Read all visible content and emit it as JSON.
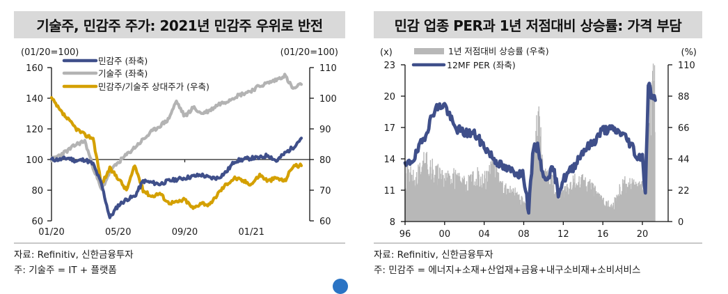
{
  "colors": {
    "navy": "#3f4f8a",
    "gray": "#b3b3b3",
    "gold": "#d4a000",
    "title_bg": "#d9d9d9",
    "bar_gray": "#b8b8b8"
  },
  "left_panel": {
    "title": "기술주, 민감주 주가: 2021년 민감주 우위로 반전",
    "left_unit": "(01/20=100)",
    "right_unit": "(01/20=100)",
    "source": "자료: Refinitiv, 신한금융투자",
    "note": "주: 기술주 = IT + 플랫폼"
  },
  "right_panel": {
    "title": "민감 업종 PER과 1년 저점대비 상승률: 가격 부담",
    "left_unit": "(x)",
    "right_unit": "(%)",
    "source": "자료: Refinitiv, 신한금융투자",
    "note": "주: 민감주 = 에너지+소재+산업재+금융+내구소비재+소비서비스"
  },
  "chart_data": [
    {
      "type": "line",
      "title": "기술주, 민감주 주가: 2021년 민감주 우위로 반전",
      "xlabel": "",
      "ylabel": "(01/20=100)",
      "ylabel_right": "(01/20=100)",
      "ylim": [
        60,
        160
      ],
      "ylim_right": [
        60,
        110
      ],
      "yticks": [
        60,
        80,
        100,
        120,
        140,
        160
      ],
      "yticks_right": [
        60,
        70,
        80,
        90,
        100,
        110
      ],
      "xticks": [
        "01/20",
        "05/20",
        "09/20",
        "01/21"
      ],
      "legend": [
        "민감주 (좌축)",
        "기술주 (좌축)",
        "민감주/기술주 상대주가 (우축)"
      ],
      "legend_position": "top-left",
      "grid": false,
      "reference_line": {
        "axis": "right",
        "value": 80
      },
      "x": [
        0,
        0.5,
        1,
        1.5,
        2,
        2.5,
        3,
        3.5,
        4,
        4.5,
        5,
        5.5,
        6,
        6.5,
        7,
        7.5,
        8,
        8.5,
        9,
        9.5,
        10,
        10.5,
        11,
        11.5,
        12,
        12.5,
        13,
        13.5,
        14,
        14.5,
        15
      ],
      "series": [
        {
          "name": "민감주 (좌축)",
          "axis": "left",
          "color": "#3f4f8a",
          "values": [
            100,
            100,
            101,
            99,
            100,
            97,
            84,
            62,
            70,
            74,
            76,
            86,
            85,
            84,
            86,
            87,
            88,
            89,
            90,
            88,
            88,
            92,
            99,
            100,
            101,
            101,
            103,
            99,
            104,
            108,
            114
          ]
        },
        {
          "name": "기술주 (좌축)",
          "axis": "left",
          "color": "#b3b3b3",
          "values": [
            100,
            103,
            106,
            110,
            112,
            95,
            80,
            92,
            98,
            103,
            108,
            113,
            118,
            122,
            126,
            138,
            128,
            134,
            130,
            132,
            136,
            138,
            141,
            143,
            145,
            148,
            150,
            152,
            155,
            146,
            149
          ]
        },
        {
          "name": "민감주/기술주 상대주가 (우축)",
          "axis": "right",
          "color": "#d4a000",
          "values": [
            100,
            96,
            93,
            90,
            88,
            87,
            72,
            77,
            74,
            70,
            78,
            70,
            68,
            69,
            66,
            66,
            67,
            64,
            66,
            65,
            69,
            72,
            74,
            73,
            72,
            75,
            73,
            74,
            73,
            78,
            78
          ]
        }
      ]
    },
    {
      "type": "line+area",
      "title": "민감 업종 PER과 1년 저점대비 상승률: 가격 부담",
      "xlabel": "",
      "ylabel": "(x)",
      "ylabel_right": "(%)",
      "ylim": [
        8,
        23
      ],
      "ylim_right": [
        0,
        110
      ],
      "yticks": [
        8,
        11,
        14,
        17,
        20,
        23
      ],
      "yticks_right": [
        0,
        22,
        44,
        66,
        88,
        110
      ],
      "xticks": [
        "96",
        "00",
        "04",
        "08",
        "12",
        "16",
        "20"
      ],
      "legend": [
        "1년 저점대비 상승률 (우축)",
        "12MF PER (좌축)"
      ],
      "legend_position": "top-left",
      "grid": false,
      "x": [
        1996,
        1997,
        1998,
        1999,
        2000,
        2001,
        2002,
        2003,
        2004,
        2005,
        2006,
        2007,
        2008,
        2008.5,
        2009,
        2009.5,
        2010,
        2011,
        2011.5,
        2012,
        2013,
        2014,
        2015,
        2016,
        2017,
        2018,
        2019,
        2019.5,
        2020,
        2020.3,
        2020.6,
        2021,
        2021.3
      ],
      "series": [
        {
          "name": "12MF PER (좌축)",
          "axis": "left",
          "color": "#3f4f8a",
          "values": [
            13.2,
            14.2,
            16.2,
            18.8,
            19.2,
            17.0,
            16.5,
            16.4,
            15.2,
            14.0,
            13.1,
            12.8,
            12.4,
            9.0,
            15.3,
            15.0,
            12.0,
            13.0,
            10.8,
            12.0,
            13.2,
            14.8,
            15.5,
            16.8,
            16.8,
            16.4,
            15.2,
            14.0,
            14.5,
            10.5,
            21.3,
            19.8,
            19.6
          ]
        },
        {
          "name": "1년 저점대비 상승률 (우축)",
          "axis": "right",
          "color": "#b8b8b8",
          "values": [
            40,
            30,
            45,
            38,
            30,
            34,
            28,
            36,
            33,
            40,
            24,
            22,
            14,
            8,
            55,
            80,
            35,
            28,
            20,
            22,
            30,
            30,
            25,
            15,
            12,
            30,
            28,
            24,
            26,
            35,
            60,
            108,
            108
          ]
        }
      ]
    }
  ]
}
